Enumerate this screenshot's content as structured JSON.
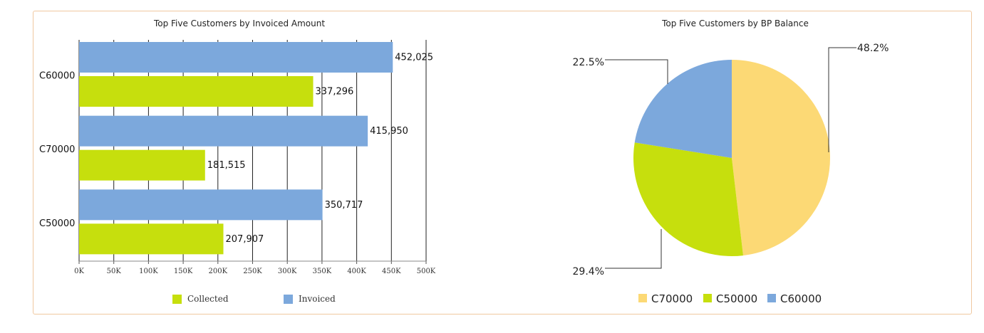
{
  "chart_data": [
    {
      "type": "bar",
      "orientation": "horizontal",
      "title": "Top Five Customers by Invoiced Amount",
      "categories": [
        "C60000",
        "C70000",
        "C50000"
      ],
      "series": [
        {
          "name": "Invoiced",
          "color": "#7ca8dc",
          "values": [
            452025,
            415950,
            350717
          ],
          "labels": [
            "452,025",
            "415,950",
            "350,717"
          ]
        },
        {
          "name": "Collected",
          "color": "#c6df0d",
          "values": [
            337296,
            181515,
            207907
          ],
          "labels": [
            "337,296",
            "181,515",
            "207,907"
          ]
        }
      ],
      "xlim": [
        0,
        500000
      ],
      "x_ticks": [
        "0K",
        "50K",
        "100K",
        "150K",
        "200K",
        "250K",
        "300K",
        "350K",
        "400K",
        "450K",
        "500K"
      ],
      "grid": true,
      "legend_position": "bottom",
      "legend": [
        {
          "label": "Collected",
          "color": "#c6df0d"
        },
        {
          "label": "Invoiced",
          "color": "#7ca8dc"
        }
      ]
    },
    {
      "type": "pie",
      "title": "Top Five Customers by BP Balance",
      "slices": [
        {
          "label": "C70000",
          "percent": 48.2,
          "percent_label": "48.2%",
          "color": "#fcd975"
        },
        {
          "label": "C50000",
          "percent": 29.4,
          "percent_label": "29.4%",
          "color": "#c6df0d"
        },
        {
          "label": "C60000",
          "percent": 22.5,
          "percent_label": "22.5%",
          "color": "#7ca8dc"
        }
      ],
      "legend_position": "bottom"
    }
  ]
}
